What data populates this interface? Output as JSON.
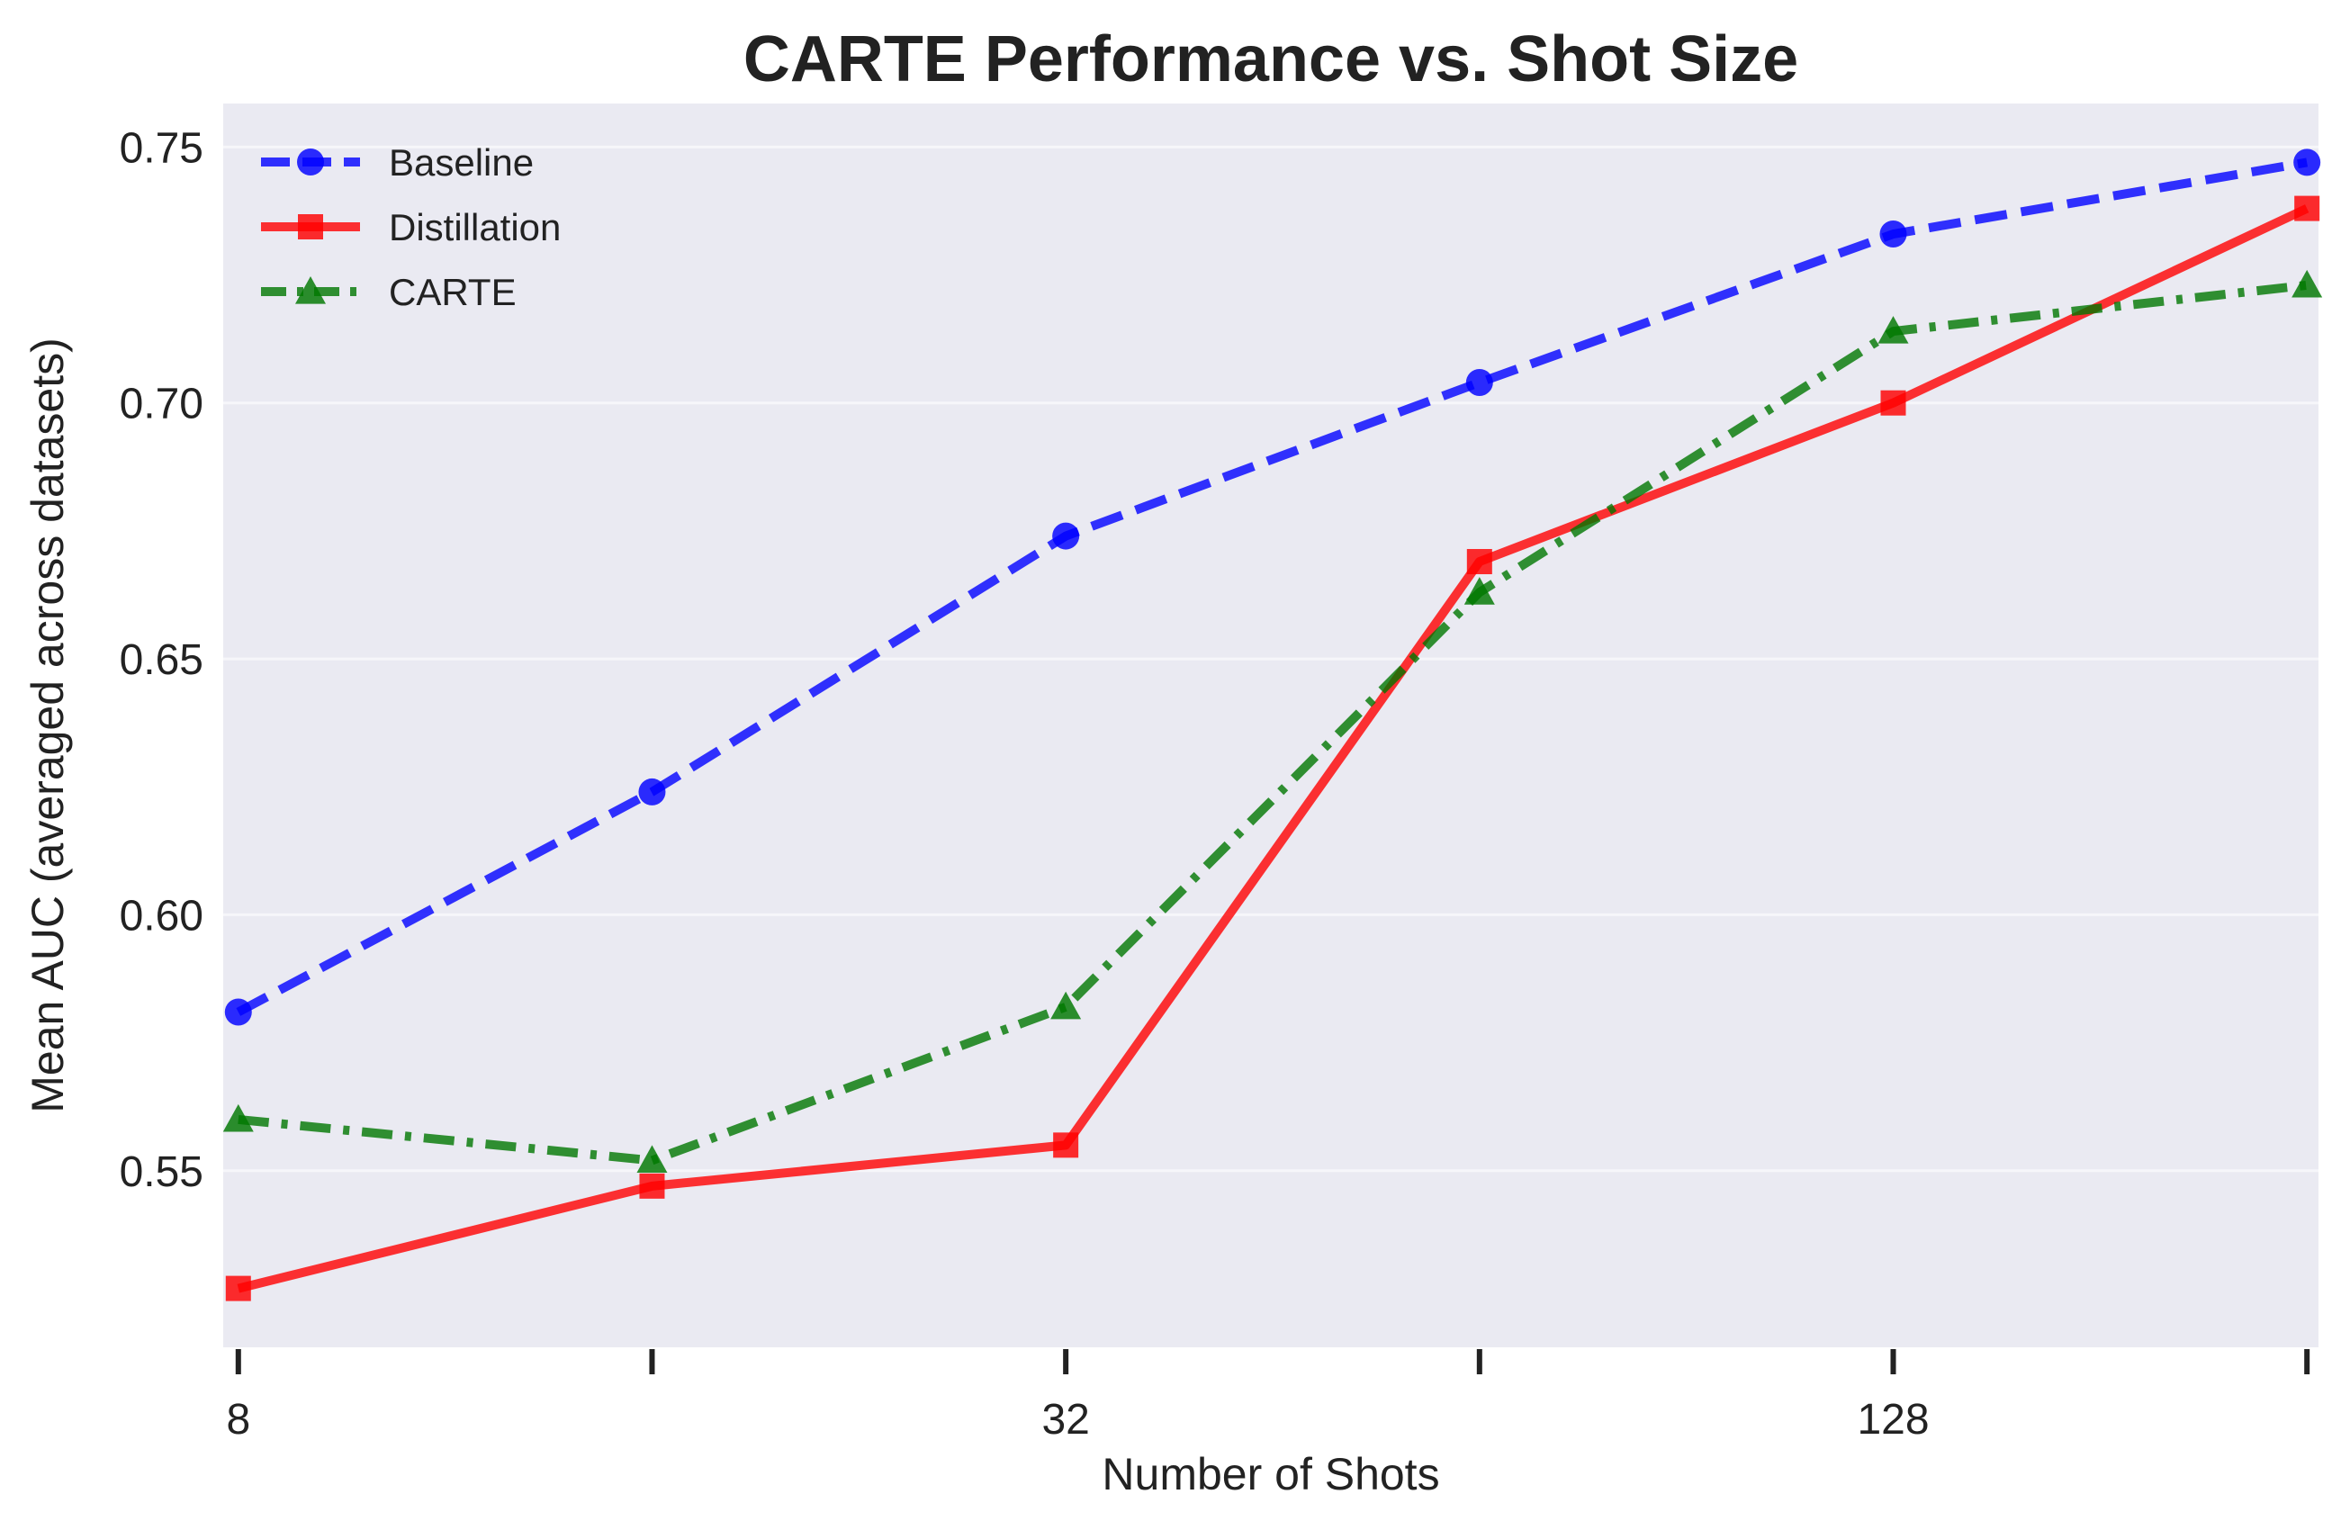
{
  "chart_data": {
    "type": "line",
    "title": "CARTE Performance vs. Shot Size",
    "xlabel": "Number of Shots",
    "ylabel": "Mean AUC (averaged across datasets)",
    "x": [
      8,
      16,
      32,
      64,
      128,
      256
    ],
    "xticks": [
      {
        "value": 8,
        "label": "8"
      },
      {
        "value": 16,
        "label": ""
      },
      {
        "value": 32,
        "label": "32"
      },
      {
        "value": 64,
        "label": ""
      },
      {
        "value": 128,
        "label": "128"
      },
      {
        "value": 256,
        "label": ""
      }
    ],
    "yticks": [
      {
        "value": 0.55,
        "label": "0.55"
      },
      {
        "value": 0.6,
        "label": "0.60"
      },
      {
        "value": 0.65,
        "label": "0.65"
      },
      {
        "value": 0.7,
        "label": "0.70"
      },
      {
        "value": 0.75,
        "label": "0.75"
      }
    ],
    "xlim": [
      7.8,
      261
    ],
    "ylim": [
      0.5155,
      0.7585
    ],
    "grid": true,
    "legend_position": "top-left",
    "background": "#eaeaf2",
    "series": [
      {
        "name": "Baseline",
        "values": [
          0.581,
          0.624,
          0.674,
          0.704,
          0.733,
          0.747
        ],
        "color": "#0000ff",
        "line_style": "dashed",
        "marker": "circle"
      },
      {
        "name": "Distillation",
        "values": [
          0.527,
          0.547,
          0.555,
          0.669,
          0.7,
          0.738
        ],
        "color": "#ff0000",
        "line_style": "solid",
        "marker": "square"
      },
      {
        "name": "CARTE",
        "values": [
          0.56,
          0.552,
          0.582,
          0.663,
          0.714,
          0.723
        ],
        "color": "#007700",
        "line_style": "dashdot",
        "marker": "triangle"
      }
    ]
  }
}
